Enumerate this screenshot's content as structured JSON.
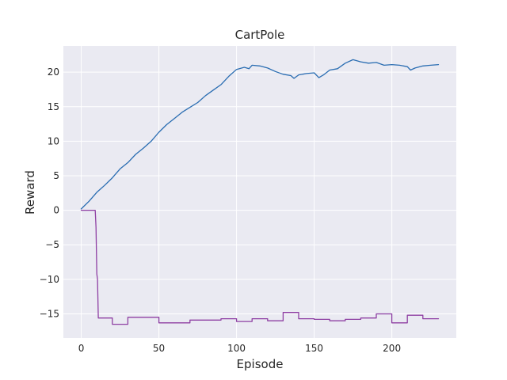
{
  "chart_data": {
    "type": "line",
    "title": "CartPole",
    "xlabel": "Episode",
    "ylabel": "Reward",
    "xlim": [
      -11.5,
      241.5
    ],
    "ylim": [
      -18.5,
      23.8
    ],
    "x_ticks": [
      0,
      50,
      100,
      150,
      200
    ],
    "x_tick_labels": [
      "0",
      "50",
      "100",
      "150",
      "200"
    ],
    "y_ticks": [
      -15,
      -10,
      -5,
      0,
      5,
      10,
      15,
      20
    ],
    "y_tick_labels": [
      "−15",
      "−10",
      "−5",
      "0",
      "5",
      "10",
      "15",
      "20"
    ],
    "grid": true,
    "legend": "none",
    "series": [
      {
        "color": "#2a6db2",
        "step": false,
        "points": [
          [
            0,
            0.2
          ],
          [
            5,
            1.3
          ],
          [
            10,
            2.6
          ],
          [
            15,
            3.6
          ],
          [
            20,
            4.7
          ],
          [
            25,
            6.0
          ],
          [
            30,
            6.9
          ],
          [
            35,
            8.1
          ],
          [
            40,
            9.0
          ],
          [
            45,
            10.0
          ],
          [
            50,
            11.3
          ],
          [
            55,
            12.4
          ],
          [
            60,
            13.3
          ],
          [
            65,
            14.2
          ],
          [
            70,
            14.9
          ],
          [
            75,
            15.6
          ],
          [
            80,
            16.6
          ],
          [
            85,
            17.4
          ],
          [
            90,
            18.2
          ],
          [
            95,
            19.4
          ],
          [
            100,
            20.4
          ],
          [
            105,
            20.7
          ],
          [
            108,
            20.5
          ],
          [
            110,
            21.0
          ],
          [
            115,
            20.9
          ],
          [
            120,
            20.6
          ],
          [
            125,
            20.1
          ],
          [
            130,
            19.7
          ],
          [
            135,
            19.5
          ],
          [
            137,
            19.1
          ],
          [
            140,
            19.6
          ],
          [
            145,
            19.8
          ],
          [
            150,
            19.9
          ],
          [
            153,
            19.2
          ],
          [
            156,
            19.6
          ],
          [
            160,
            20.3
          ],
          [
            165,
            20.5
          ],
          [
            170,
            21.3
          ],
          [
            175,
            21.8
          ],
          [
            180,
            21.5
          ],
          [
            185,
            21.3
          ],
          [
            190,
            21.4
          ],
          [
            195,
            21.0
          ],
          [
            200,
            21.1
          ],
          [
            205,
            21.0
          ],
          [
            210,
            20.8
          ],
          [
            212,
            20.3
          ],
          [
            215,
            20.6
          ],
          [
            220,
            20.9
          ],
          [
            225,
            21.0
          ],
          [
            230,
            21.1
          ]
        ]
      },
      {
        "color": "#8e3fa3",
        "step": true,
        "points": [
          [
            0,
            0
          ],
          [
            9,
            0
          ],
          [
            9.5,
            -2.5
          ],
          [
            10,
            -9.2
          ],
          [
            10.5,
            -10
          ],
          [
            11,
            -15.6
          ],
          [
            20,
            -15.6
          ],
          [
            20,
            -16.5
          ],
          [
            30,
            -16.5
          ],
          [
            30,
            -15.5
          ],
          [
            50,
            -15.5
          ],
          [
            50,
            -16.3
          ],
          [
            70,
            -16.3
          ],
          [
            70,
            -15.9
          ],
          [
            90,
            -15.9
          ],
          [
            90,
            -15.7
          ],
          [
            100,
            -15.7
          ],
          [
            100,
            -16.1
          ],
          [
            110,
            -16.1
          ],
          [
            110,
            -15.7
          ],
          [
            120,
            -15.7
          ],
          [
            120,
            -16.0
          ],
          [
            130,
            -16.0
          ],
          [
            130,
            -14.8
          ],
          [
            140,
            -14.8
          ],
          [
            140,
            -15.7
          ],
          [
            150,
            -15.7
          ],
          [
            150,
            -15.8
          ],
          [
            160,
            -15.8
          ],
          [
            160,
            -16.0
          ],
          [
            170,
            -16.0
          ],
          [
            170,
            -15.8
          ],
          [
            180,
            -15.8
          ],
          [
            180,
            -15.6
          ],
          [
            190,
            -15.6
          ],
          [
            190,
            -15.0
          ],
          [
            200,
            -15.0
          ],
          [
            200,
            -16.3
          ],
          [
            210,
            -16.3
          ],
          [
            210,
            -15.2
          ],
          [
            220,
            -15.2
          ],
          [
            220,
            -15.7
          ],
          [
            230,
            -15.7
          ]
        ]
      }
    ]
  }
}
